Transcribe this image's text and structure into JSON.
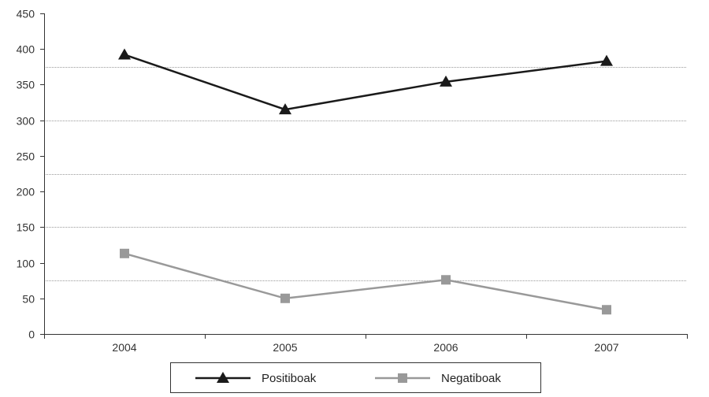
{
  "chart_data": {
    "type": "line",
    "title": "",
    "xlabel": "",
    "ylabel": "",
    "categories": [
      "2004",
      "2005",
      "2006",
      "2007"
    ],
    "ylim": [
      0,
      450
    ],
    "yticks": [
      "0",
      "50",
      "100",
      "150",
      "200",
      "250",
      "300",
      "350",
      "400",
      "450"
    ],
    "grid": true,
    "legend_position": "bottom-center",
    "series": [
      {
        "name": "Positiboak",
        "values": [
          392,
          315,
          354,
          383
        ],
        "color": "#1a1a1a",
        "marker": "triangle"
      },
      {
        "name": "Negatiboak",
        "values": [
          113,
          50,
          76,
          34
        ],
        "color": "#999999",
        "marker": "square"
      }
    ]
  }
}
